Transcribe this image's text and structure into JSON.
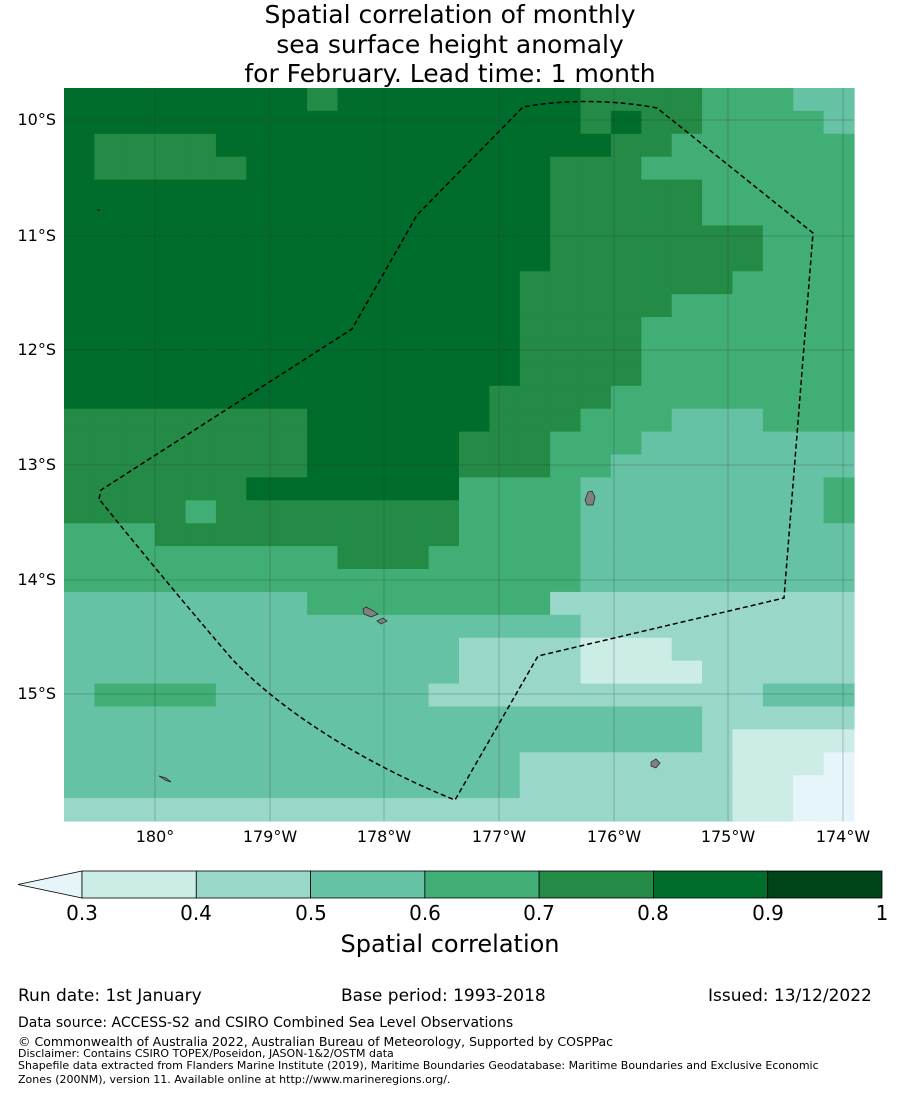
{
  "title_lines": [
    "Spatial correlation of monthly",
    "sea surface height anomaly",
    "for February. Lead time: 1 month"
  ],
  "map": {
    "lat_labels": [
      "10°S",
      "11°S",
      "12°S",
      "13°S",
      "14°S",
      "15°S"
    ],
    "lon_labels": [
      "180°",
      "179°W",
      "178°W",
      "177°W",
      "176°W",
      "175°W",
      "174°W"
    ],
    "grid_rows": [
      "66666666566666666555544433",
      "66666666666666666565544443",
      "65555666666666666655444444",
      "65555566666666665554444444",
      "66666666666666665555544444",
      "66666666666666665555544444",
      "66666666666666665555555444",
      "66666666666666665555555444",
      "66666666666666655555554444",
      "66666666666666655555444444",
      "66666666666666655554444444",
      "66666666666666655554444444",
      "66666666666666655554444444",
      "66666666666666555544444444",
      "55555555666666555444333444",
      "55555555666665554443333333",
      "55555555666665554433333333",
      "55555566666664444333333334",
      "55554555555554444333333334",
      "44455555555554444333333333",
      "44444444455544444333333333",
      "44444444444444444333333333",
      "33333333444444442222222222",
      "33333333333333333222222222",
      "33333333333332222111222222",
      "33333333333332222111122222",
      "34444333333322222222222333",
      "33333333333333333333322222",
      "33333333333333333333321111",
      "33333333333333322222221110",
      "33333333333333322222221100",
      "22222222222222222222221100"
    ]
  },
  "colorbar": {
    "label": "Spatial correlation",
    "ticks": [
      "0.3",
      "0.4",
      "0.5",
      "0.6",
      "0.7",
      "0.8",
      "0.9",
      "1"
    ],
    "extend_color": "#e5f5f9",
    "colors": [
      "#ccece6",
      "#99d8c9",
      "#66c2a4",
      "#41ae76",
      "#238b45",
      "#006d2c",
      "#00441b"
    ]
  },
  "info": {
    "run_date": "Run date: 1st January",
    "base_period": "Base period: 1993-2018",
    "issued": "Issued: 13/12/2022"
  },
  "footer": {
    "data_source": "Data source: ACCESS-S2 and CSIRO Combined Sea Level Observations",
    "copyright": "© Commonwealth of Australia 2022, Australian Bureau of Meteorology, Supported by COSPPac",
    "disclaimer": "Disclaimer: Contains CSIRO TOPEX/Poseidon, JASON-1&2/OSTM data",
    "shapefile_1": "Shapefile data extracted from Flanders Marine Institute (2019), Maritime Boundaries Geodatabase: Maritime Boundaries and Exclusive Economic",
    "shapefile_2": "Zones (200NM), version 11. Available online at http://www.marineregions.org/."
  }
}
